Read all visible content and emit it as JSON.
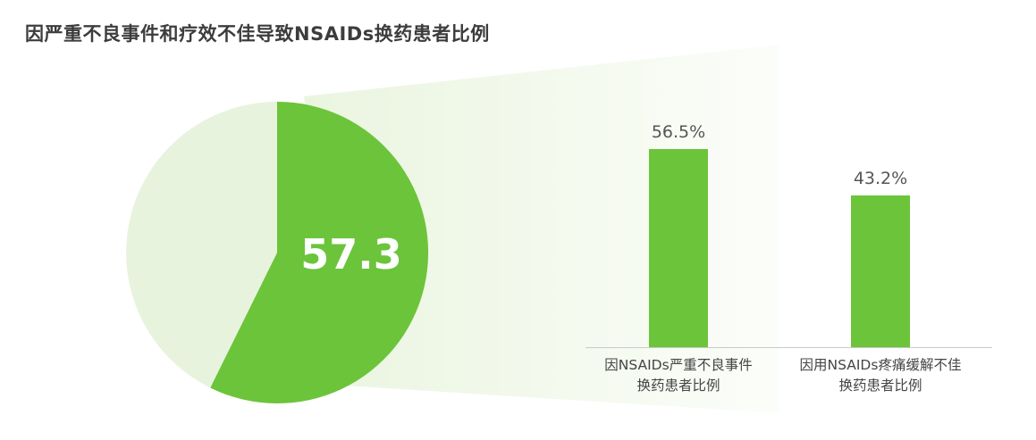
{
  "page": {
    "title": "因严重不良事件和疗效不佳导致NSAIDs换药患者比例"
  },
  "colors": {
    "green": "#6cc43a",
    "pale_green": "#e8f3de",
    "beam_tint": "#8cc850",
    "axis_gray": "#c9c9c9",
    "title_text": "#3c3c3c",
    "label_text": "#454545",
    "value_text": "#565656"
  },
  "chart_data": [
    {
      "type": "pie",
      "center_label": "57.3",
      "slices": [
        {
          "value": 57.3,
          "color": "#6cc43a"
        },
        {
          "value": 42.7,
          "color": "#e8f3de"
        }
      ],
      "start_angle_deg": -90,
      "direction": "clockwise"
    },
    {
      "type": "bar",
      "categories": [
        [
          "因NSAIDs严重不良事件",
          "换药患者比例"
        ],
        [
          "因用NSAIDs疼痛缓解不佳",
          "换药患者比例"
        ]
      ],
      "values": [
        56.5,
        43.2
      ],
      "value_labels": [
        "56.5%",
        "43.2%"
      ],
      "ylim": [
        0,
        60
      ],
      "bar_color": "#6cc43a",
      "grid": false,
      "legend": "none"
    }
  ]
}
